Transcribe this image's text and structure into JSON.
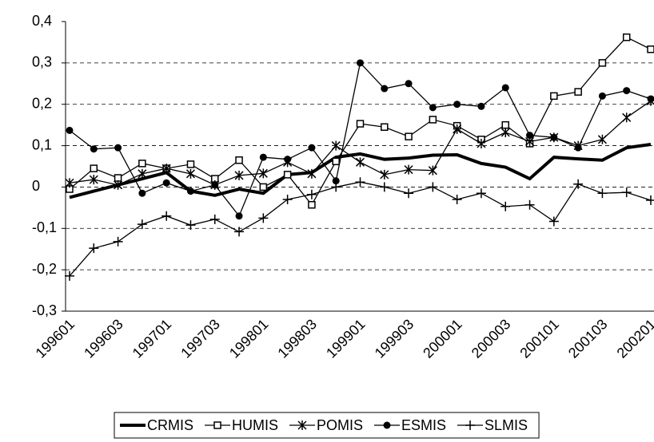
{
  "chart_data": {
    "type": "line",
    "categories": [
      "199601",
      null,
      "199603",
      null,
      "199701",
      null,
      "199703",
      null,
      "199801",
      null,
      "199803",
      null,
      "199901",
      null,
      "199903",
      null,
      "200001",
      null,
      "200003",
      null,
      "200101",
      null,
      "200103",
      null,
      "200201"
    ],
    "series": [
      {
        "name": "CRMIS",
        "color": "#000000",
        "marker": "none",
        "values": [
          -0.025,
          -0.01,
          0.005,
          0.02,
          0.035,
          -0.01,
          -0.02,
          -0.005,
          -0.015,
          0.03,
          0.035,
          0.072,
          0.08,
          0.067,
          0.07,
          0.077,
          0.078,
          0.057,
          0.048,
          0.02,
          0.072,
          0.068,
          0.065,
          0.095,
          0.103
        ]
      },
      {
        "name": "HUMIS",
        "color": "#000000",
        "marker": "square",
        "values": [
          -0.005,
          0.045,
          0.022,
          0.057,
          0.045,
          0.055,
          0.02,
          0.065,
          0.0,
          0.03,
          -0.043,
          0.062,
          0.153,
          0.145,
          0.122,
          0.163,
          0.148,
          0.115,
          0.15,
          0.105,
          0.22,
          0.23,
          0.3,
          0.362,
          0.333
        ]
      },
      {
        "name": "POMIS",
        "color": "#000000",
        "marker": "star",
        "values": [
          0.01,
          0.018,
          0.005,
          0.032,
          0.045,
          0.032,
          0.005,
          0.028,
          0.033,
          0.06,
          0.032,
          0.1,
          0.06,
          0.03,
          0.042,
          0.04,
          0.14,
          0.105,
          0.132,
          0.11,
          0.12,
          0.1,
          0.115,
          0.168,
          0.208
        ]
      },
      {
        "name": "ESMIS",
        "color": "#000000",
        "marker": "circle",
        "values": [
          0.137,
          0.092,
          0.095,
          -0.015,
          0.01,
          -0.01,
          0.005,
          -0.07,
          0.072,
          0.067,
          0.095,
          0.015,
          0.3,
          0.238,
          0.25,
          0.192,
          0.2,
          0.195,
          0.24,
          0.125,
          0.12,
          0.095,
          0.22,
          0.233,
          0.213
        ]
      },
      {
        "name": "SLMIS",
        "color": "#000000",
        "marker": "plus",
        "values": [
          -0.215,
          -0.148,
          -0.132,
          -0.09,
          -0.07,
          -0.092,
          -0.078,
          -0.108,
          -0.075,
          -0.03,
          -0.018,
          0.0,
          0.012,
          0.0,
          -0.015,
          0.0,
          -0.03,
          -0.015,
          -0.047,
          -0.043,
          -0.083,
          0.007,
          -0.015,
          -0.013,
          -0.032
        ]
      }
    ],
    "ylim": [
      -0.3,
      0.4
    ],
    "yticks": [
      {
        "value": 0.4,
        "label": "0,4"
      },
      {
        "value": 0.3,
        "label": "0,3"
      },
      {
        "value": 0.2,
        "label": "0,2"
      },
      {
        "value": 0.1,
        "label": "0,1"
      },
      0,
      {
        "value": -0.1,
        "label": "-0,1"
      },
      {
        "value": -0.2,
        "label": "-0,2"
      },
      {
        "value": -0.3,
        "label": "-0,3"
      }
    ],
    "grid": true,
    "legend": "bottom"
  }
}
